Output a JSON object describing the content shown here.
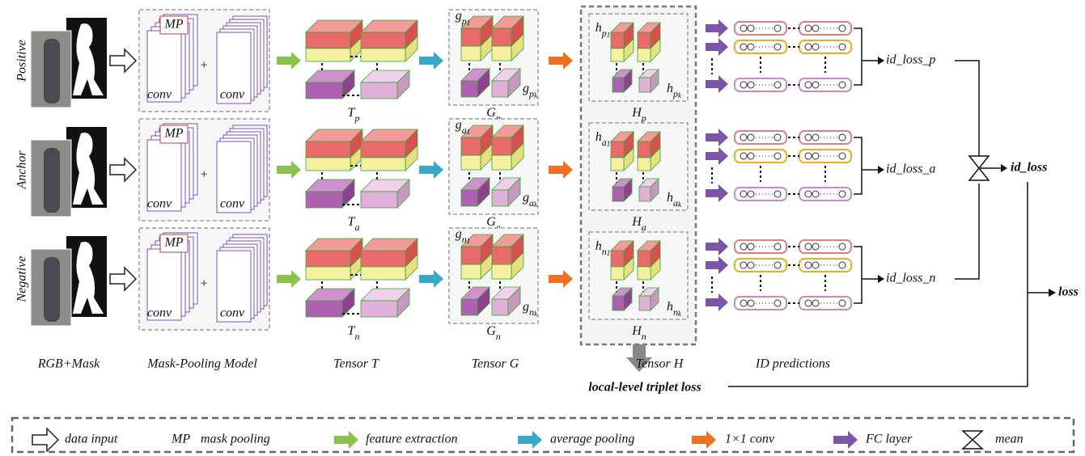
{
  "rows": [
    {
      "name": "Positive",
      "tensor_t": {
        "base": "T",
        "sub": "p"
      },
      "tensor_g": {
        "base": "G",
        "sub": "p"
      },
      "g_first": {
        "base": "g",
        "sub": "p",
        "index": "1"
      },
      "g_last": {
        "base": "g",
        "sub": "p",
        "index": "k"
      },
      "tensor_h": {
        "base": "H",
        "sub": "p"
      },
      "h_first": {
        "base": "h",
        "sub": "p",
        "index": "1"
      },
      "h_last": {
        "base": "h",
        "sub": "p",
        "index": "k"
      },
      "id_loss": "id_loss_p"
    },
    {
      "name": "Anchor",
      "tensor_t": {
        "base": "T",
        "sub": "a"
      },
      "tensor_g": {
        "base": "G",
        "sub": "a"
      },
      "g_first": {
        "base": "g",
        "sub": "a",
        "index": "1"
      },
      "g_last": {
        "base": "g",
        "sub": "a",
        "index": "k"
      },
      "tensor_h": {
        "base": "H",
        "sub": "a"
      },
      "h_first": {
        "base": "h",
        "sub": "a",
        "index": "1"
      },
      "h_last": {
        "base": "h",
        "sub": "a",
        "index": "k"
      },
      "id_loss": "id_loss_a"
    },
    {
      "name": "Negative",
      "tensor_t": {
        "base": "T",
        "sub": "n"
      },
      "tensor_g": {
        "base": "G",
        "sub": "n"
      },
      "g_first": {
        "base": "g",
        "sub": "n",
        "index": "1"
      },
      "g_last": {
        "base": "g",
        "sub": "n",
        "index": "k"
      },
      "tensor_h": {
        "base": "H",
        "sub": "n"
      },
      "h_first": {
        "base": "h",
        "sub": "n",
        "index": "1"
      },
      "h_last": {
        "base": "h",
        "sub": "n",
        "index": "k"
      },
      "id_loss": "id_loss_n"
    }
  ],
  "mp_label": "MP",
  "conv_label": "conv",
  "plus": "+",
  "columns": [
    "RGB+Mask",
    "Mask-Pooling Model",
    "Tensor T",
    "Tensor G",
    "Tensor H",
    "ID predictions"
  ],
  "outputs": {
    "id_loss": "id_loss",
    "loss": "loss",
    "triplet": "local-level triplet loss"
  },
  "legend": [
    {
      "label": "data input"
    },
    {
      "symbol": "MP",
      "label": "mask pooling"
    },
    {
      "label": "feature extraction"
    },
    {
      "label": "average pooling"
    },
    {
      "label": "1×1 conv"
    },
    {
      "label": "FC layer"
    },
    {
      "label": "mean"
    }
  ]
}
